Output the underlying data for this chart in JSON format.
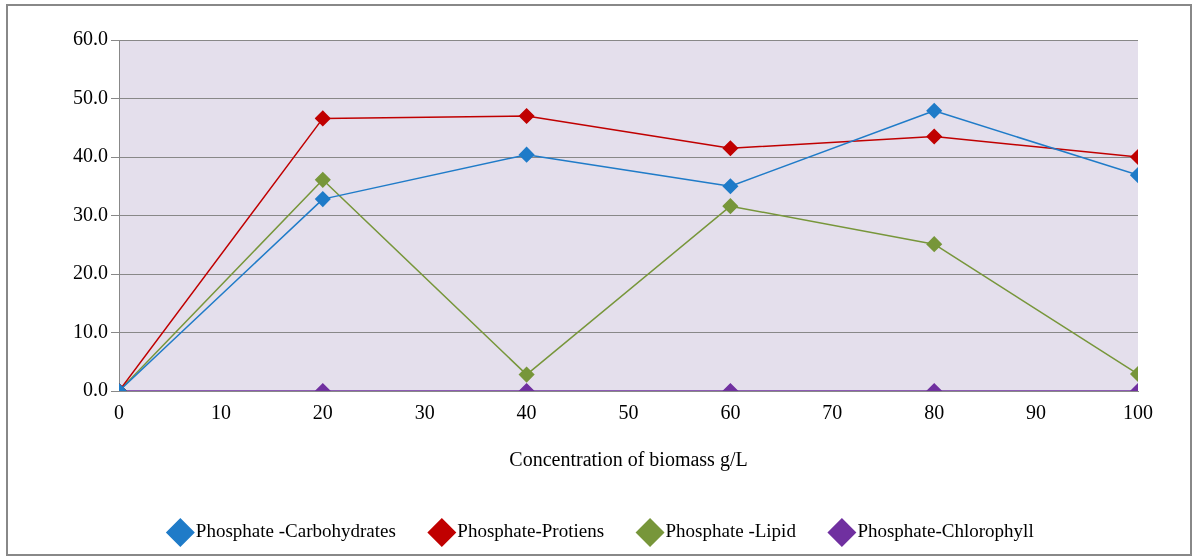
{
  "chart_data": {
    "type": "line",
    "xlabel": "Concentration of biomass g/L",
    "x": [
      0,
      20,
      40,
      60,
      80,
      100
    ],
    "series": [
      {
        "name": "Phosphate -Carbohydrates",
        "color": "#1f7bc8",
        "values": [
          0,
          32.8,
          40.4,
          35.0,
          47.9,
          36.9
        ]
      },
      {
        "name": "Phosphate-Protiens",
        "color": "#c00000",
        "values": [
          0,
          46.6,
          47.0,
          41.5,
          43.5,
          40.0
        ]
      },
      {
        "name": "Phosphate -Lipid",
        "color": "#77963a",
        "values": [
          0,
          36.1,
          2.8,
          31.6,
          25.1,
          2.9
        ]
      },
      {
        "name": "Phosphate-Chlorophyll",
        "color": "#7030a0",
        "values": [
          0,
          0,
          0,
          0,
          0,
          0
        ]
      }
    ],
    "xlim": [
      0,
      100
    ],
    "xticks": [
      0,
      10,
      20,
      30,
      40,
      50,
      60,
      70,
      80,
      90,
      100
    ],
    "ylim": [
      0,
      60
    ],
    "yticks": [
      {
        "value": 0,
        "label": "0.0"
      },
      {
        "value": 10,
        "label": "10.0"
      },
      {
        "value": 20,
        "label": "20.0"
      },
      {
        "value": 30,
        "label": "30.0"
      },
      {
        "value": 40,
        "label": "40.0"
      },
      {
        "value": 50,
        "label": "50.0"
      },
      {
        "value": 60,
        "label": "60.0"
      }
    ],
    "grid": "y",
    "legend": "bottom",
    "marker": "diamond",
    "line_style": "solid"
  }
}
